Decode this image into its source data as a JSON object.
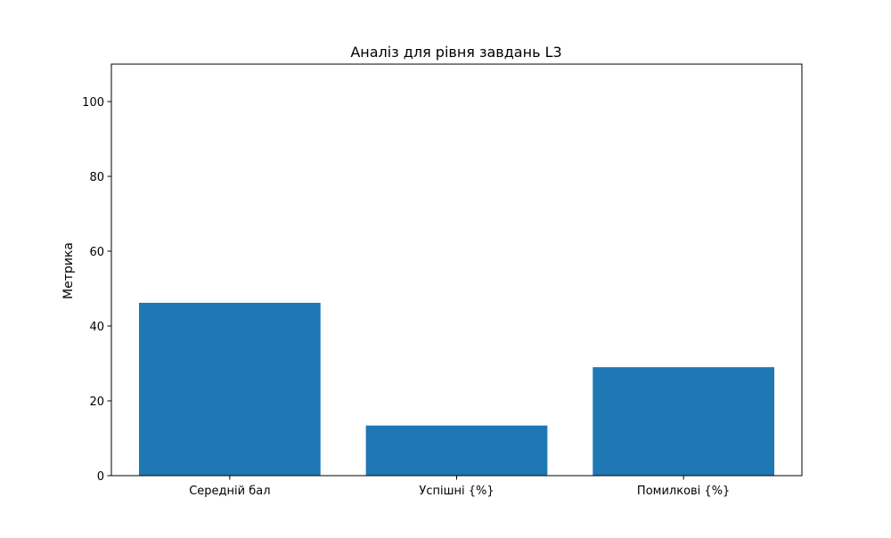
{
  "chart_data": {
    "type": "bar",
    "title": "Аналіз для рівня завдань L3",
    "xlabel": "",
    "ylabel": "Метрика",
    "categories": [
      "Середній бал",
      "Успішні {%}",
      "Помилкові {%}"
    ],
    "values": [
      46.2,
      13.4,
      29.0
    ],
    "ylim": [
      0,
      110
    ],
    "yticks": [
      0,
      20,
      40,
      60,
      80,
      100
    ],
    "bar_color": "#1f77b4",
    "grid": false,
    "legend": "none"
  }
}
